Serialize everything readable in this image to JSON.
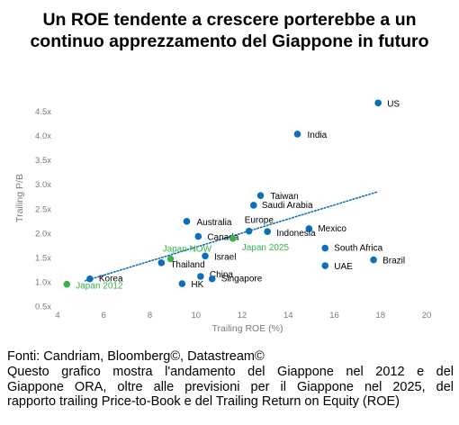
{
  "title_lines": [
    "Un ROE tendente a crescere porterebbe a un",
    "continuo apprezzamento del Giappone in futuro"
  ],
  "footer": {
    "source": "Fonti: Candriam, Bloomberg©, Datastream©",
    "lines": [
      "Questo grafico mostra l'andamento del Giappone nel 2012 e del",
      "Giappone ORA, oltre alle previsioni per il Giappone nel 2025, del",
      "rapporto trailing Price-to-Book e del Trailing Return on Equity (ROE)"
    ]
  },
  "colors": {
    "point": "#0d6fb8",
    "japan": "#3bb34a",
    "trendline": "#0d6fb8",
    "tick": "#7a7a7a"
  },
  "chart_data": {
    "type": "scatter",
    "xlabel": "Trailing ROE (%)",
    "ylabel": "Trailing P/B",
    "xlim": [
      4,
      20
    ],
    "ylim": [
      0.5,
      4.75
    ],
    "x_ticks": [
      4,
      6,
      8,
      10,
      12,
      14,
      16,
      18,
      20
    ],
    "y_ticks": [
      0.5,
      1.0,
      1.5,
      2.0,
      2.5,
      3.0,
      3.5,
      4.0,
      4.5
    ],
    "x_tick_labels": [
      "4",
      "6",
      "8",
      "10",
      "12",
      "14",
      "16",
      "18",
      "20"
    ],
    "y_tick_labels": [
      "0.5x",
      "1.0x",
      "1.5x",
      "2.0x",
      "2.5x",
      "3.0x",
      "3.5x",
      "4.0x",
      "4.5x"
    ],
    "grid": false,
    "trendline": {
      "style": "dotted",
      "from": [
        5.2,
        1.02
      ],
      "to": [
        17.9,
        2.85
      ]
    },
    "points": [
      {
        "label": "US",
        "x": 17.9,
        "y": 4.67,
        "group": "country"
      },
      {
        "label": "India",
        "x": 14.4,
        "y": 4.03,
        "group": "country"
      },
      {
        "label": "Taiwan",
        "x": 12.8,
        "y": 2.77,
        "group": "country"
      },
      {
        "label": "Saudi Arabia",
        "x": 12.5,
        "y": 2.57,
        "group": "country"
      },
      {
        "label": "Australia",
        "x": 9.6,
        "y": 2.24,
        "group": "country"
      },
      {
        "label": "Europe",
        "x": 12.3,
        "y": 2.04,
        "group": "country"
      },
      {
        "label": "Mexico",
        "x": 14.9,
        "y": 2.09,
        "group": "country"
      },
      {
        "label": "Indonesia",
        "x": 13.1,
        "y": 2.03,
        "group": "country"
      },
      {
        "label": "Canada",
        "x": 10.1,
        "y": 1.93,
        "group": "country"
      },
      {
        "label": "South Africa",
        "x": 15.6,
        "y": 1.69,
        "group": "country"
      },
      {
        "label": "Israel",
        "x": 10.4,
        "y": 1.53,
        "group": "country"
      },
      {
        "label": "Brazil",
        "x": 17.7,
        "y": 1.45,
        "group": "country"
      },
      {
        "label": "Thailand",
        "x": 8.5,
        "y": 1.39,
        "group": "country"
      },
      {
        "label": "UAE",
        "x": 15.6,
        "y": 1.33,
        "group": "country"
      },
      {
        "label": "China",
        "x": 10.2,
        "y": 1.11,
        "group": "country"
      },
      {
        "label": "Singapore",
        "x": 10.7,
        "y": 1.06,
        "group": "country"
      },
      {
        "label": "Korea",
        "x": 5.4,
        "y": 1.06,
        "group": "country"
      },
      {
        "label": "HK",
        "x": 9.4,
        "y": 0.96,
        "group": "country"
      },
      {
        "label": "Japan NOW",
        "x": 8.9,
        "y": 1.47,
        "group": "japan"
      },
      {
        "label": "Japan 2025",
        "x": 11.6,
        "y": 1.89,
        "group": "japan"
      },
      {
        "label": "Japan 2012",
        "x": 4.4,
        "y": 0.95,
        "group": "japan"
      }
    ]
  }
}
